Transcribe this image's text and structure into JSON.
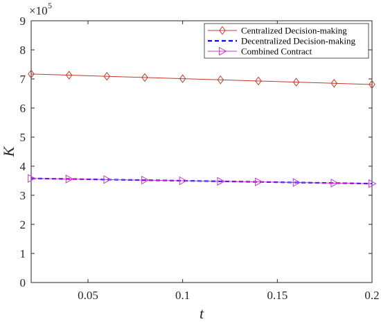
{
  "chart_data": {
    "type": "line",
    "xlabel": "t",
    "ylabel": "K",
    "y_multiplier_label": {
      "base": "×10",
      "exponent": "5"
    },
    "xlim": [
      0.02,
      0.2
    ],
    "ylim": [
      0,
      9
    ],
    "x_ticks": [
      0.05,
      0.1,
      0.15,
      0.2
    ],
    "x_tick_labels": [
      "0.05",
      "0.1",
      "0.15",
      "0.2"
    ],
    "y_ticks": [
      0,
      1,
      2,
      3,
      4,
      5,
      6,
      7,
      8,
      9
    ],
    "y_tick_labels": [
      "0",
      "1",
      "2",
      "3",
      "4",
      "5",
      "6",
      "7",
      "8",
      "9"
    ],
    "grid": false,
    "legend_position": "top-right",
    "x": [
      0.02,
      0.04,
      0.06,
      0.08,
      0.1,
      0.12,
      0.14,
      0.16,
      0.18,
      0.2
    ],
    "series": [
      {
        "name": "Centralized Decision-making",
        "values": [
          7.17,
          7.13,
          7.09,
          7.05,
          7.01,
          6.97,
          6.93,
          6.89,
          6.85,
          6.81
        ],
        "color": "#c0392b",
        "line_style": "solid",
        "marker": "diamond"
      },
      {
        "name": "Decentralized Decision-making",
        "values": [
          3.58,
          3.56,
          3.54,
          3.52,
          3.5,
          3.48,
          3.46,
          3.44,
          3.42,
          3.4
        ],
        "color": "#0000ff",
        "line_style": "dashed",
        "marker": "none"
      },
      {
        "name": "Combined Contract",
        "values": [
          3.58,
          3.56,
          3.54,
          3.52,
          3.5,
          3.48,
          3.46,
          3.44,
          3.42,
          3.4
        ],
        "color": "#cc33cc",
        "line_style": "solid",
        "marker": "triangle-right"
      }
    ]
  }
}
